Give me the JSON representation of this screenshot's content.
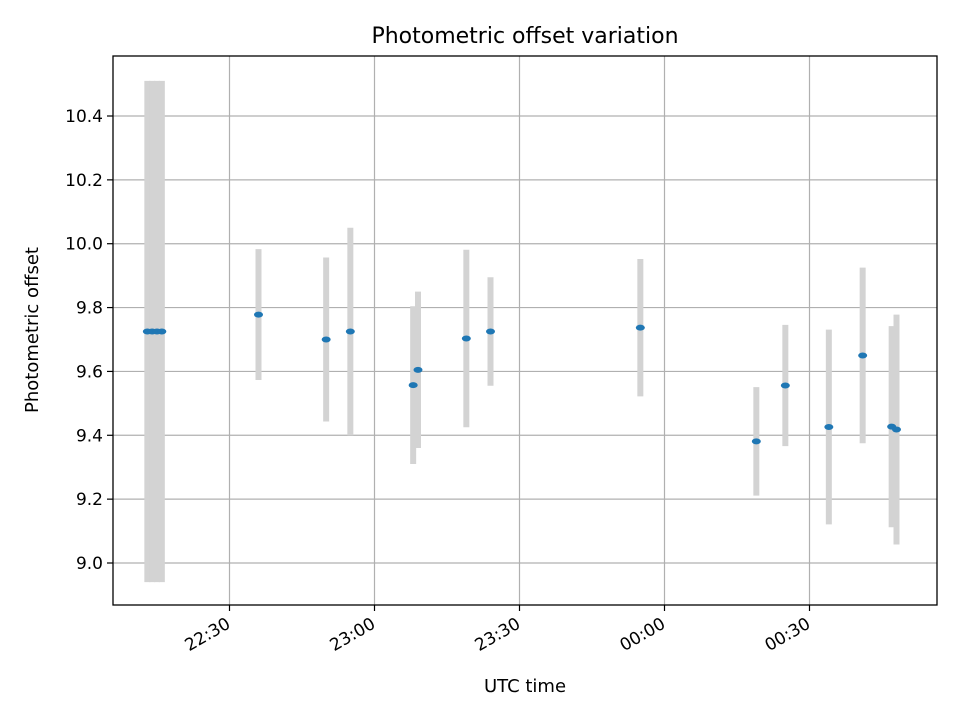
{
  "chart_data": {
    "type": "scatter",
    "title": "Photometric offset variation",
    "xlabel": "UTC time",
    "ylabel": "Photometric offset",
    "x_ticks": [
      "22:30",
      "23:00",
      "23:30",
      "00:00",
      "00:30"
    ],
    "y_ticks": [
      "9.0",
      "9.2",
      "9.4",
      "9.6",
      "9.8",
      "10.0",
      "10.2",
      "10.4"
    ],
    "ylim": [
      8.87,
      10.58
    ],
    "grid": true,
    "colors": {
      "point": "#1f77b4",
      "error_bar": "#d3d3d3",
      "grid": "#b0b0b0"
    },
    "points": [
      {
        "time": "22:13",
        "offset": 9.725,
        "err": 0.785
      },
      {
        "time": "22:14",
        "offset": 9.725,
        "err": 0.785
      },
      {
        "time": "22:15",
        "offset": 9.725,
        "err": 0.785
      },
      {
        "time": "22:16",
        "offset": 9.725,
        "err": 0.785
      },
      {
        "time": "22:36",
        "offset": 9.778,
        "err": 0.205
      },
      {
        "time": "22:50",
        "offset": 9.7,
        "err": 0.257
      },
      {
        "time": "22:55",
        "offset": 9.725,
        "err": 0.325
      },
      {
        "time": "23:08",
        "offset": 9.557,
        "err": 0.247
      },
      {
        "time": "23:09",
        "offset": 9.605,
        "err": 0.245
      },
      {
        "time": "23:19",
        "offset": 9.703,
        "err": 0.278
      },
      {
        "time": "23:24",
        "offset": 9.725,
        "err": 0.17
      },
      {
        "time": "23:55",
        "offset": 9.737,
        "err": 0.215
      },
      {
        "time": "00:19",
        "offset": 9.381,
        "err": 0.17
      },
      {
        "time": "00:25",
        "offset": 9.556,
        "err": 0.19
      },
      {
        "time": "00:34",
        "offset": 9.426,
        "err": 0.305
      },
      {
        "time": "00:41",
        "offset": 9.65,
        "err": 0.275
      },
      {
        "time": "00:47",
        "offset": 9.427,
        "err": 0.315
      },
      {
        "time": "00:48",
        "offset": 9.418,
        "err": 0.36
      }
    ]
  }
}
